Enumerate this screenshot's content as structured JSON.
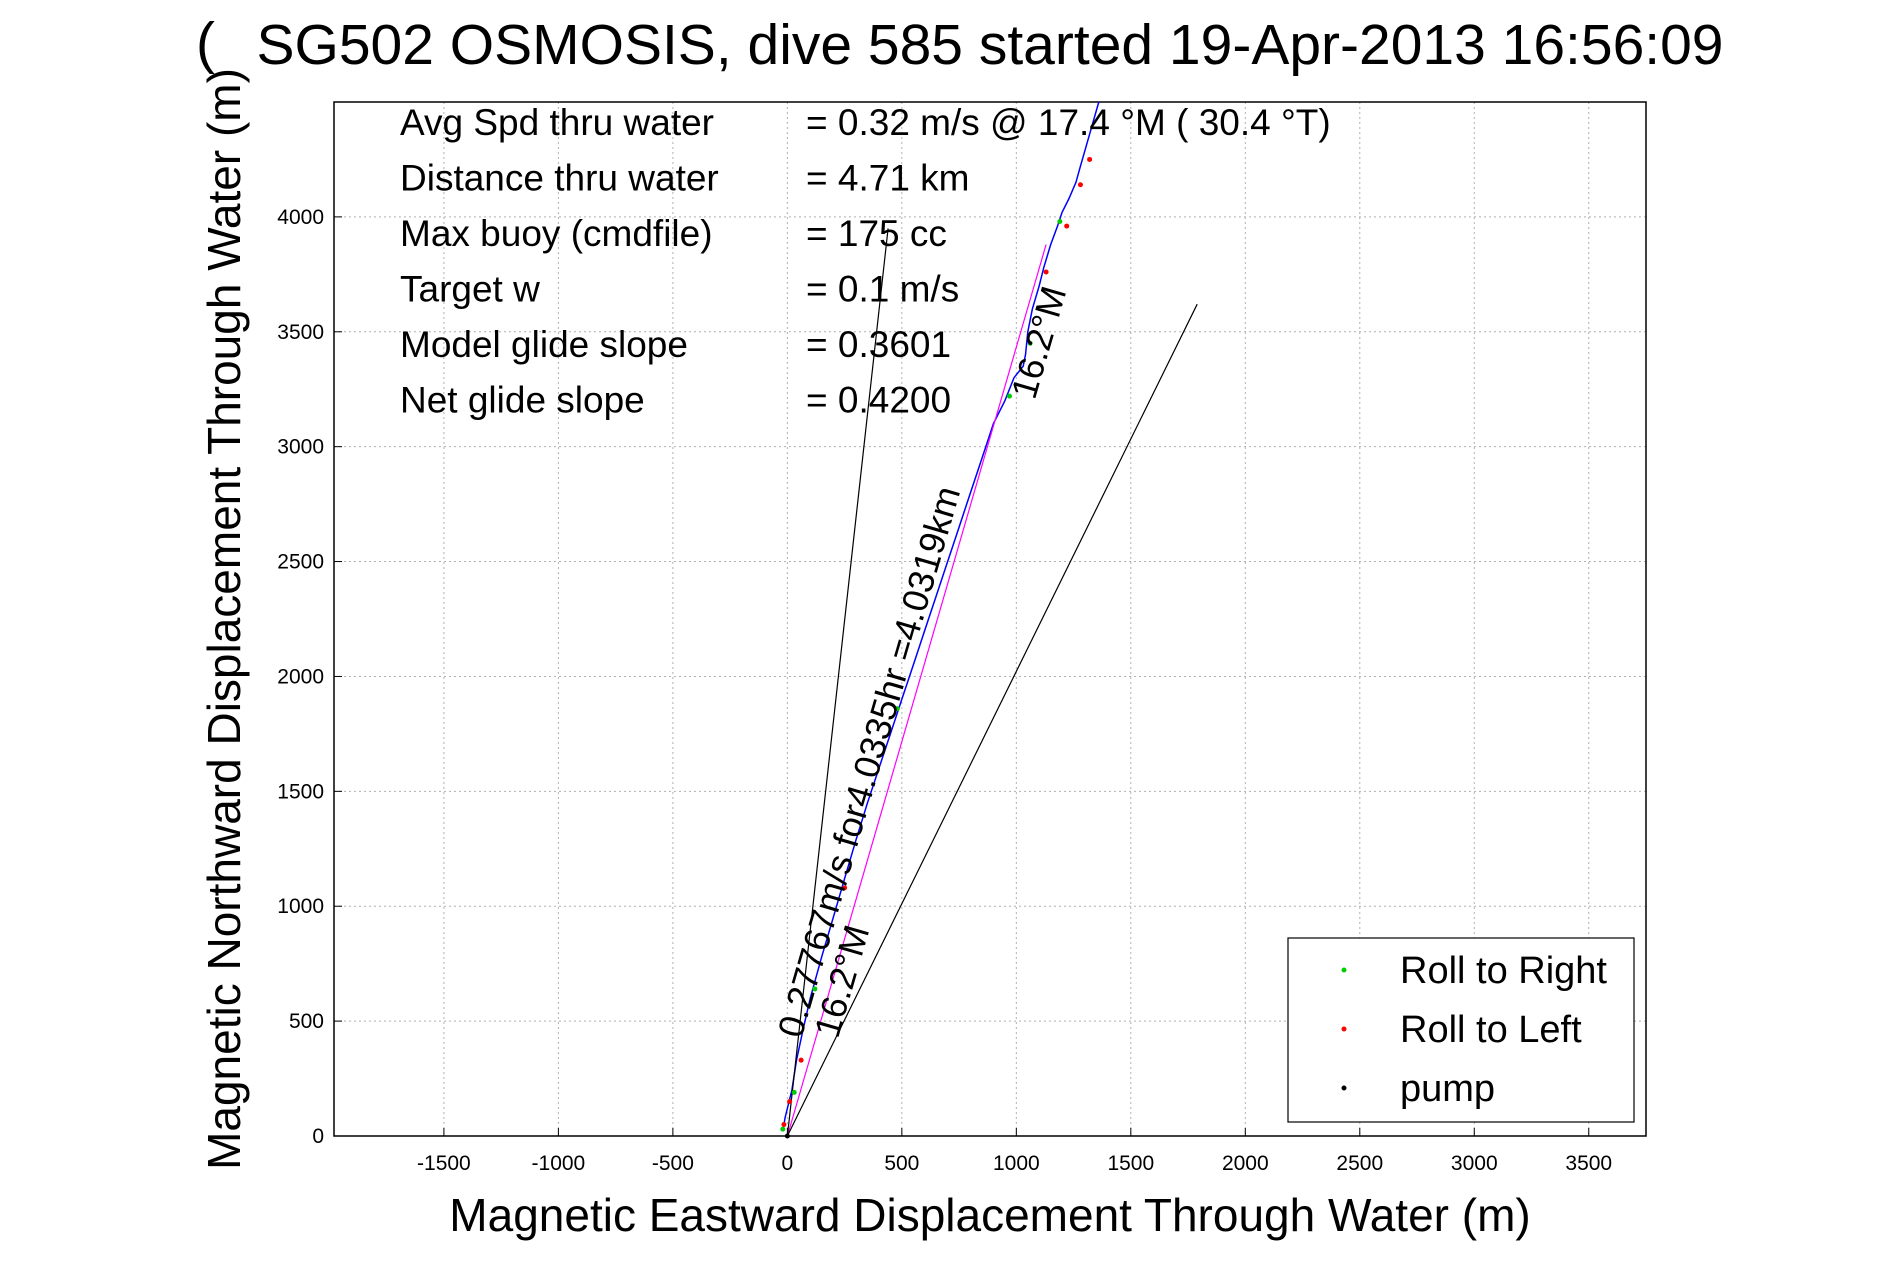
{
  "chart_data": {
    "type": "line",
    "title": "SG502 OSMOSIS, dive 585 started 19-Apr-2013 16:56:09",
    "title_overlay": "(",
    "xlabel": "Magnetic Eastward Displacement Through Water (m)",
    "ylabel": "Magnetic Northward Displacement Through Water (m)",
    "xlim": [
      -1980,
      3750
    ],
    "ylim": [
      0,
      4500
    ],
    "xticks": [
      -1500,
      -1000,
      -500,
      0,
      500,
      1000,
      1500,
      2000,
      2500,
      3000,
      3500
    ],
    "yticks": [
      0,
      500,
      1000,
      1500,
      2000,
      2500,
      3000,
      3500,
      4000
    ],
    "grid": true,
    "stats": [
      {
        "label": "Avg Spd thru water",
        "value": "=  0.32 m/s @  17.4 °M ( 30.4 °T)"
      },
      {
        "label": "Distance thru water",
        "value": "=  4.71 km"
      },
      {
        "label": "Max buoy (cmdfile)",
        "value": "= 175 cc"
      },
      {
        "label": "Target w",
        "value": "= 0.1 m/s"
      },
      {
        "label": "Model glide slope",
        "value": "= 0.3601"
      },
      {
        "label": "Net glide slope",
        "value": "= 0.4200"
      }
    ],
    "annotations": [
      {
        "text": "0.27767m/s for4.0335hr =4.0319km",
        "x": 60,
        "y": 420,
        "angle": 16.2
      },
      {
        "text": "16.2°M",
        "x": 220,
        "y": 420,
        "angle": 16.2
      },
      {
        "text": "16.2°M",
        "x": 1080,
        "y": 3200,
        "angle": 16.2
      }
    ],
    "series": [
      {
        "role": "track",
        "color": "#0000ff",
        "x": [
          -20,
          -10,
          20,
          40,
          70,
          100,
          150,
          200,
          250,
          300,
          350,
          400,
          450,
          500,
          550,
          600,
          650,
          700,
          750,
          800,
          850,
          900,
          950,
          990,
          1030,
          1040,
          1050,
          1070,
          1100,
          1120,
          1150,
          1180,
          1200,
          1230,
          1260,
          1280,
          1300,
          1320,
          1340,
          1360
        ],
        "y": [
          20,
          80,
          200,
          330,
          470,
          600,
          780,
          950,
          1120,
          1290,
          1450,
          1600,
          1750,
          1900,
          2050,
          2200,
          2350,
          2500,
          2650,
          2800,
          2950,
          3100,
          3200,
          3300,
          3350,
          3400,
          3500,
          3600,
          3700,
          3780,
          3880,
          3960,
          4020,
          4080,
          4150,
          4220,
          4290,
          4360,
          4430,
          4500
        ]
      },
      {
        "role": "model-line",
        "color": "#ff00ff",
        "x": [
          0,
          1130
        ],
        "y": [
          0,
          3880
        ]
      },
      {
        "role": "reference",
        "color": "#000000",
        "x": [
          0,
          440
        ],
        "y": [
          0,
          3950
        ]
      },
      {
        "role": "reference",
        "color": "#000000",
        "x": [
          0,
          1790
        ],
        "y": [
          0,
          3620
        ]
      }
    ],
    "points": {
      "roll_right": {
        "x": [
          -20,
          30,
          120,
          480,
          970,
          1060,
          1190
        ],
        "y": [
          30,
          190,
          640,
          1860,
          3220,
          3450,
          3980
        ]
      },
      "roll_left": {
        "x": [
          -15,
          10,
          60,
          250,
          1130,
          1220,
          1280,
          1320
        ],
        "y": [
          50,
          150,
          330,
          1080,
          3760,
          3960,
          4140,
          4250
        ]
      },
      "pump": {
        "x": [
          0
        ],
        "y": [
          0
        ]
      }
    },
    "legend": {
      "position": "bottom-right",
      "entries": [
        {
          "name": "Roll to Right",
          "color": "#00cc00"
        },
        {
          "name": "Roll to Left",
          "color": "#ff0000"
        },
        {
          "name": "pump",
          "color": "#000000"
        }
      ]
    }
  }
}
